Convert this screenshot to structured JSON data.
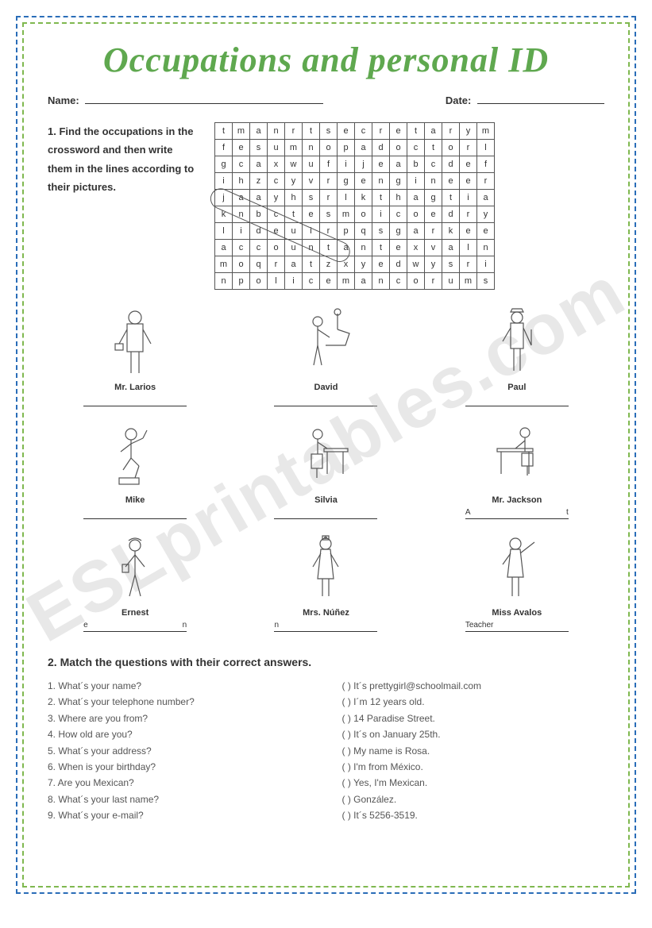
{
  "title": "Occupations and personal ID",
  "header": {
    "name_label": "Name:",
    "date_label": "Date:"
  },
  "section1": {
    "instructions": "1. Find the occupations in the crossword and then write them in the lines according to their pictures.",
    "wordsearch_rows": [
      [
        "t",
        "m",
        "a",
        "n",
        "r",
        "t",
        "s",
        "e",
        "c",
        "r",
        "e",
        "t",
        "a",
        "r",
        "y",
        "m"
      ],
      [
        "f",
        "e",
        "s",
        "u",
        "m",
        "n",
        "o",
        "p",
        "a",
        "d",
        "o",
        "c",
        "t",
        "o",
        "r",
        "l"
      ],
      [
        "g",
        "c",
        "a",
        "x",
        "w",
        "u",
        "f",
        "i",
        "j",
        "e",
        "a",
        "b",
        "c",
        "d",
        "e",
        "f"
      ],
      [
        "i",
        "h",
        "z",
        "c",
        "y",
        "v",
        "r",
        "g",
        "e",
        "n",
        "g",
        "i",
        "n",
        "e",
        "e",
        "r"
      ],
      [
        "j",
        "a",
        "a",
        "y",
        "h",
        "s",
        "r",
        "l",
        "k",
        "t",
        "h",
        "a",
        "g",
        "t",
        "i",
        "a"
      ],
      [
        "k",
        "n",
        "b",
        "c",
        "t",
        "e",
        "s",
        "m",
        "o",
        "i",
        "c",
        "o",
        "e",
        "d",
        "r",
        "y"
      ],
      [
        "l",
        "i",
        "d",
        "e",
        "u",
        "i",
        "r",
        "p",
        "q",
        "s",
        "g",
        "a",
        "r",
        "k",
        "e",
        "e"
      ],
      [
        "a",
        "c",
        "c",
        "o",
        "u",
        "n",
        "t",
        "a",
        "n",
        "t",
        "e",
        "x",
        "v",
        "a",
        "l",
        "n"
      ],
      [
        "m",
        "o",
        "q",
        "r",
        "a",
        "t",
        "z",
        "x",
        "y",
        "e",
        "d",
        "w",
        "y",
        "s",
        "r",
        "i"
      ],
      [
        "n",
        "p",
        "o",
        "l",
        "i",
        "c",
        "e",
        "m",
        "a",
        "n",
        "c",
        "o",
        "r",
        "u",
        "m",
        "s"
      ]
    ],
    "pictures": [
      {
        "label": "Mr. Larios",
        "hint": ""
      },
      {
        "label": "David",
        "hint": ""
      },
      {
        "label": "Paul",
        "hint": ""
      },
      {
        "label": "Mike",
        "hint": ""
      },
      {
        "label": "Silvia",
        "hint": ""
      },
      {
        "label": "Mr. Jackson",
        "hint_left": "A",
        "hint_right": "t"
      },
      {
        "label": "Ernest",
        "hint_left": "e",
        "hint_right": "n"
      },
      {
        "label": "Mrs. Núñez",
        "hint_left": "n",
        "hint_right": ""
      },
      {
        "label": "Miss Avalos",
        "answer": "Teacher"
      }
    ]
  },
  "section2": {
    "title": "2. Match the questions with their correct answers.",
    "questions": [
      "1. What´s your name?",
      "2. What´s your telephone number?",
      "3. Where are you from?",
      "4. How old are you?",
      "5. What´s your address?",
      "6. When is your birthday?",
      "7. Are you Mexican?",
      "8. What´s your last name?",
      "9. What´s your e-mail?"
    ],
    "answers": [
      "(    ) It´s prettygirl@schoolmail.com",
      "(    ) I´m 12 years old.",
      "(    ) 14 Paradise Street.",
      "(    ) It´s on January 25th.",
      "(    ) My name is Rosa.",
      "(    ) I'm from México.",
      "(    ) Yes, I'm Mexican.",
      "(    ) González.",
      "(    ) It´s 5256-3519."
    ]
  },
  "watermark": "ESLprintables.com",
  "styling": {
    "outer_border_color": "#2a6db8",
    "inner_border_color": "#7fb84f",
    "title_color": "#5fa84f",
    "text_color": "#333333",
    "cell_size": 22,
    "title_fontsize": 44
  }
}
